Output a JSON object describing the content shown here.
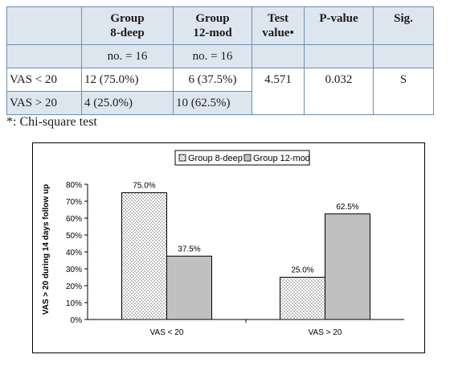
{
  "table": {
    "headers": [
      "",
      "Group\n8-deep",
      "Group\n12-mod",
      "Test\nvalue•",
      "P-value",
      "Sig."
    ],
    "subheader": [
      "",
      "no. = 16",
      "no. = 16",
      "",
      "",
      ""
    ],
    "rows": [
      [
        "VAS < 20",
        "12 (75.0%)",
        "6 (37.5%)",
        "4.571",
        "0.032",
        "S"
      ],
      [
        "VAS > 20",
        "4 (25.0%)",
        "10 (62.5%)"
      ]
    ]
  },
  "footnote": "*: Chi-square test",
  "colors": {
    "table_border": "#6b8fb0",
    "table_shade": "#dde6ef",
    "series_1_fill": "#ffffff",
    "series_2_fill": "#c0c0c0"
  },
  "chart_data": {
    "type": "bar",
    "categories": [
      "VAS < 20",
      "VAS > 20"
    ],
    "series": [
      {
        "name": "Group 8-deep",
        "values": [
          75.0,
          25.0
        ],
        "labels": [
          "75.0%",
          "25.0%"
        ],
        "pattern": "dots"
      },
      {
        "name": "Group 12-mod",
        "values": [
          37.5,
          62.5
        ],
        "labels": [
          "37.5%",
          "62.5%"
        ],
        "pattern": "solid-gray"
      }
    ],
    "ylabel": "VAS > 20 during 14 days follow up",
    "yticks": [
      "0%",
      "10%",
      "20%",
      "30%",
      "40%",
      "50%",
      "60%",
      "70%",
      "80%"
    ],
    "ylim": [
      0,
      80
    ],
    "legend_position": "top-center",
    "grid": false
  }
}
